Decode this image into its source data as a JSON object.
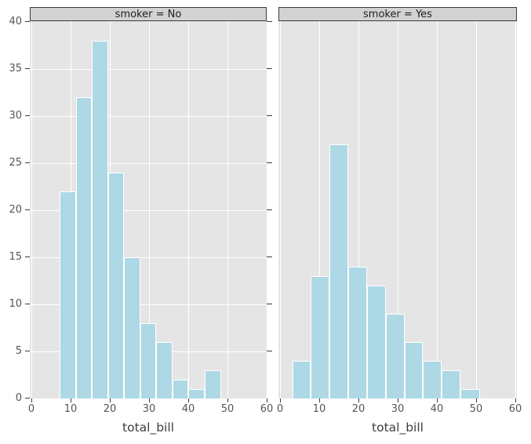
{
  "figure": {
    "xlabel": "total_bill",
    "x_tick_labels": [
      "0",
      "10",
      "20",
      "30",
      "40",
      "50",
      "60"
    ],
    "y_tick_labels": [
      "0",
      "5",
      "10",
      "15",
      "20",
      "25",
      "30",
      "35",
      "40"
    ],
    "colors": {
      "figure_bg": "#ffffff",
      "panel_bg": "#e5e5e5",
      "grid": "#ffffff",
      "bar_fill": "#add8e6",
      "bar_edge": "#ffffff",
      "strip_bg": "#d2d2d2",
      "strip_border": "#3a3a3a",
      "strip_text": "#1f1f1f",
      "tick": "#3b3b3b",
      "tick_label": "#555555",
      "axis_label": "#3d3d3d"
    }
  },
  "chart_data": {
    "type": "bar",
    "subtype": "faceted-histogram",
    "xlabel": "total_bill",
    "ylabel": "",
    "xlim": [
      0,
      60
    ],
    "ylim": [
      0,
      40
    ],
    "x_ticks": [
      0,
      10,
      20,
      30,
      40,
      50,
      60
    ],
    "y_ticks": [
      0,
      5,
      10,
      15,
      20,
      25,
      30,
      35,
      40
    ],
    "grid": "white-on-gray",
    "legend": "none",
    "facets": [
      {
        "title": "smoker = No",
        "bin_start": 7.2,
        "bin_width": 4.11,
        "counts": [
          22,
          32,
          38,
          24,
          15,
          8,
          6,
          2,
          1,
          3
        ],
        "h_grid": true,
        "y_tick_labels_shown": true
      },
      {
        "title": "smoker = Yes",
        "bin_start": 3.1,
        "bin_width": 4.77,
        "counts": [
          4,
          13,
          27,
          14,
          12,
          9,
          6,
          4,
          3,
          1
        ],
        "h_grid": false,
        "y_tick_labels_shown": false
      }
    ]
  }
}
